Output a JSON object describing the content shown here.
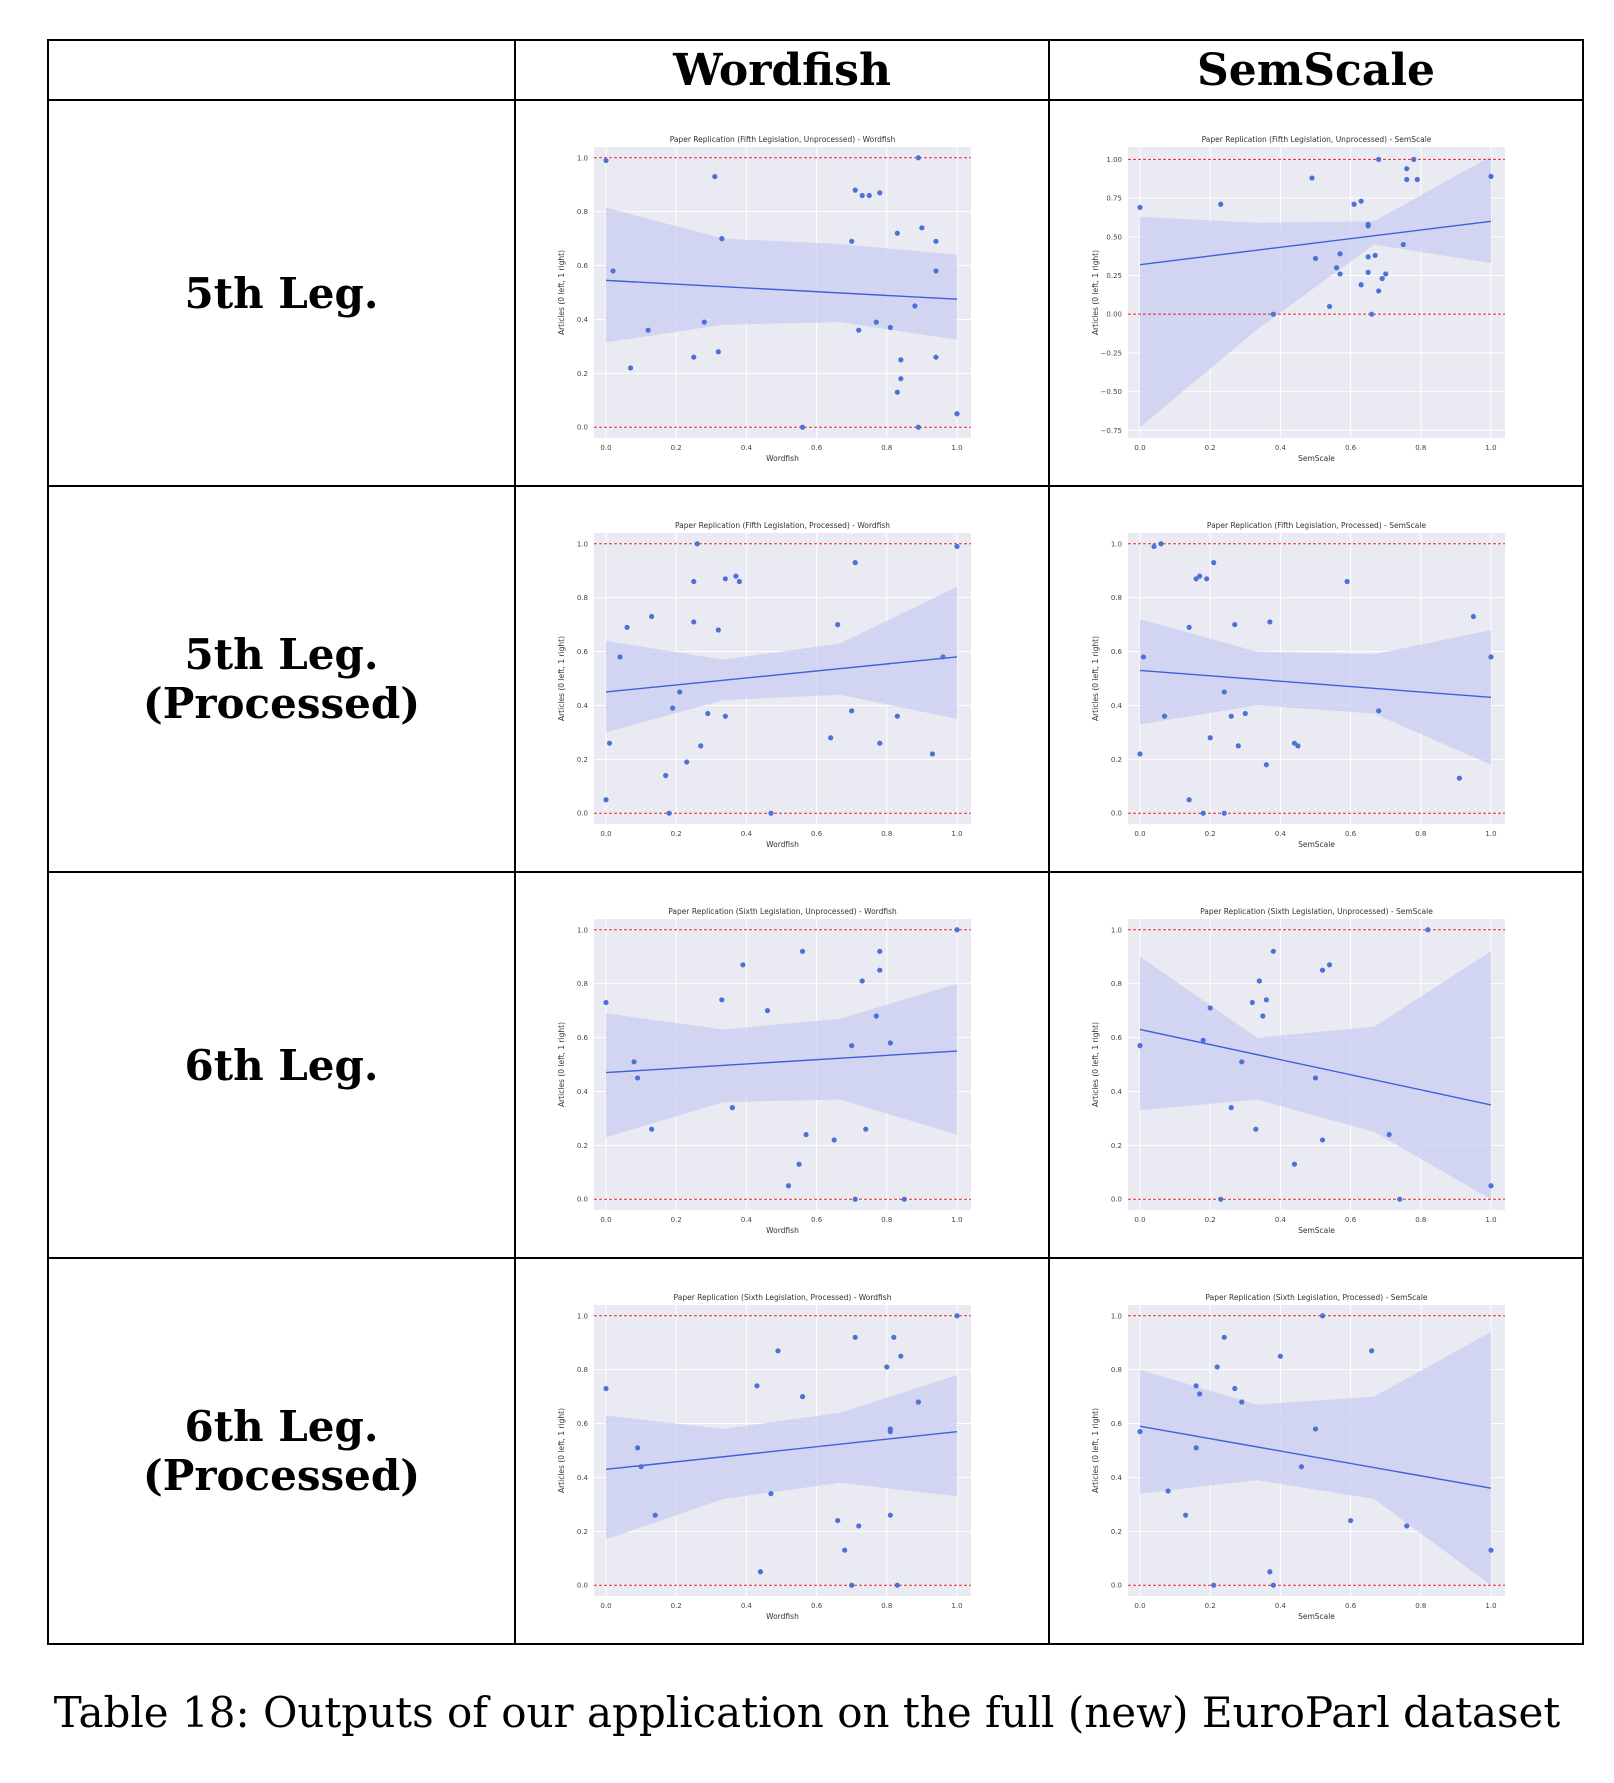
{
  "table": {
    "column_headers": [
      "",
      "Wordfish",
      "SemScale"
    ],
    "row_labels": [
      "5th Leg.",
      "5th Leg. (Processed)",
      "6th Leg.",
      "6th Leg. (Processed)"
    ]
  },
  "caption": "Table 18: Outputs of our application on the full (new) EuroParl dataset",
  "colors": {
    "plot_bg": "#eaeaf2",
    "point": "#4c72d8",
    "band": "#c9cdf0",
    "refline": "#e8202a",
    "fit": "#4060d8"
  },
  "chart_data": [
    {
      "type": "scatter",
      "title": "Paper Replication (Fifth Legislation, Unprocessed) - Wordfish",
      "xlabel": "Wordfish",
      "ylabel": "Articles (0 left, 1 right)",
      "xlim": [
        0,
        1
      ],
      "ylim": [
        -0.04,
        1.04
      ],
      "xticks": [
        "0.0",
        "0.2",
        "0.4",
        "0.6",
        "0.8",
        "1.0"
      ],
      "yticks": [
        "0.0",
        "0.2",
        "0.4",
        "0.6",
        "0.8",
        "1.0"
      ],
      "ytick_values": [
        0,
        0.2,
        0.4,
        0.6,
        0.8,
        1.0
      ],
      "ref_lines": [
        0,
        1
      ],
      "fit": [
        0.545,
        0.475
      ],
      "band_upper": [
        0.815,
        0.7,
        0.68,
        0.64
      ],
      "band_lower": [
        0.315,
        0.38,
        0.39,
        0.325
      ],
      "points": [
        [
          0,
          0.99
        ],
        [
          0.02,
          0.58
        ],
        [
          0.07,
          0.22
        ],
        [
          0.12,
          0.36
        ],
        [
          0.25,
          0.26
        ],
        [
          0.28,
          0.39
        ],
        [
          0.31,
          0.93
        ],
        [
          0.32,
          0.28
        ],
        [
          0.33,
          0.7
        ],
        [
          0.56,
          0.0
        ],
        [
          0.7,
          0.69
        ],
        [
          0.71,
          0.88
        ],
        [
          0.72,
          0.36
        ],
        [
          0.73,
          0.86
        ],
        [
          0.75,
          0.86
        ],
        [
          0.77,
          0.39
        ],
        [
          0.78,
          0.87
        ],
        [
          0.81,
          0.37
        ],
        [
          0.83,
          0.72
        ],
        [
          0.84,
          0.25
        ],
        [
          0.84,
          0.18
        ],
        [
          0.83,
          0.13
        ],
        [
          0.88,
          0.45
        ],
        [
          0.89,
          0.0
        ],
        [
          0.89,
          1.0
        ],
        [
          0.9,
          0.74
        ],
        [
          0.94,
          0.69
        ],
        [
          0.94,
          0.58
        ],
        [
          0.94,
          0.26
        ],
        [
          1.0,
          0.05
        ]
      ]
    },
    {
      "type": "scatter",
      "title": "Paper Replication (Fifth Legislation, Unprocessed) - SemScale",
      "xlabel": "SemScale",
      "ylabel": "Articles (0 left, 1 right)",
      "xlim": [
        0,
        1
      ],
      "ylim": [
        -0.8,
        1.08
      ],
      "xticks": [
        "0.0",
        "0.2",
        "0.4",
        "0.6",
        "0.8",
        "1.0"
      ],
      "yticks": [
        "−0.75",
        "−0.50",
        "−0.25",
        "0.00",
        "0.25",
        "0.50",
        "0.75",
        "1.00"
      ],
      "ytick_values": [
        -0.75,
        -0.5,
        -0.25,
        0,
        0.25,
        0.5,
        0.75,
        1.0
      ],
      "ref_lines": [
        0,
        1
      ],
      "fit": [
        0.32,
        0.6
      ],
      "band_upper": [
        0.63,
        0.59,
        0.6,
        1.02
      ],
      "band_lower": [
        -0.73,
        -0.1,
        0.45,
        0.33
      ],
      "points": [
        [
          0,
          0.69
        ],
        [
          0.23,
          0.71
        ],
        [
          0.38,
          0.0
        ],
        [
          0.49,
          0.88
        ],
        [
          0.5,
          0.36
        ],
        [
          0.54,
          0.05
        ],
        [
          0.56,
          0.3
        ],
        [
          0.57,
          0.26
        ],
        [
          0.57,
          0.39
        ],
        [
          0.61,
          0.71
        ],
        [
          0.63,
          0.19
        ],
        [
          0.63,
          0.73
        ],
        [
          0.65,
          0.57
        ],
        [
          0.65,
          0.58
        ],
        [
          0.65,
          0.37
        ],
        [
          0.65,
          0.27
        ],
        [
          0.66,
          0.0
        ],
        [
          0.67,
          0.38
        ],
        [
          0.68,
          0.15
        ],
        [
          0.68,
          1.0
        ],
        [
          0.69,
          0.23
        ],
        [
          0.7,
          0.26
        ],
        [
          0.75,
          0.45
        ],
        [
          0.76,
          0.94
        ],
        [
          0.76,
          0.87
        ],
        [
          0.78,
          1.0
        ],
        [
          0.79,
          0.87
        ],
        [
          1.0,
          0.89
        ]
      ]
    },
    {
      "type": "scatter",
      "title": "Paper Replication (Fifth Legislation, Processed) - Wordfish",
      "xlabel": "Wordfish",
      "ylabel": "Articles (0 left, 1 right)",
      "xlim": [
        0,
        1
      ],
      "ylim": [
        -0.04,
        1.04
      ],
      "xticks": [
        "0.0",
        "0.2",
        "0.4",
        "0.6",
        "0.8",
        "1.0"
      ],
      "yticks": [
        "0.0",
        "0.2",
        "0.4",
        "0.6",
        "0.8",
        "1.0"
      ],
      "ytick_values": [
        0,
        0.2,
        0.4,
        0.6,
        0.8,
        1.0
      ],
      "ref_lines": [
        0,
        1
      ],
      "fit": [
        0.45,
        0.58
      ],
      "band_upper": [
        0.64,
        0.57,
        0.63,
        0.84
      ],
      "band_lower": [
        0.3,
        0.42,
        0.44,
        0.35
      ],
      "points": [
        [
          0,
          0.05
        ],
        [
          0.01,
          0.26
        ],
        [
          0.04,
          0.58
        ],
        [
          0.06,
          0.69
        ],
        [
          0.13,
          0.73
        ],
        [
          0.17,
          0.14
        ],
        [
          0.18,
          0.0
        ],
        [
          0.19,
          0.39
        ],
        [
          0.21,
          0.45
        ],
        [
          0.23,
          0.19
        ],
        [
          0.25,
          0.71
        ],
        [
          0.25,
          0.86
        ],
        [
          0.26,
          1.0
        ],
        [
          0.27,
          0.25
        ],
        [
          0.29,
          0.37
        ],
        [
          0.32,
          0.68
        ],
        [
          0.34,
          0.36
        ],
        [
          0.34,
          0.87
        ],
        [
          0.37,
          0.88
        ],
        [
          0.38,
          0.86
        ],
        [
          0.47,
          0.0
        ],
        [
          0.64,
          0.28
        ],
        [
          0.66,
          0.7
        ],
        [
          0.7,
          0.38
        ],
        [
          0.71,
          0.93
        ],
        [
          0.78,
          0.26
        ],
        [
          0.83,
          0.36
        ],
        [
          0.93,
          0.22
        ],
        [
          0.96,
          0.58
        ],
        [
          1.0,
          0.99
        ]
      ]
    },
    {
      "type": "scatter",
      "title": "Paper Replication (Fifth Legislation, Processed) - SemScale",
      "xlabel": "SemScale",
      "ylabel": "Articles (0 left, 1 right)",
      "xlim": [
        0,
        1
      ],
      "ylim": [
        -0.04,
        1.04
      ],
      "xticks": [
        "0.0",
        "0.2",
        "0.4",
        "0.6",
        "0.8",
        "1.0"
      ],
      "yticks": [
        "0.0",
        "0.2",
        "0.4",
        "0.6",
        "0.8",
        "1.0"
      ],
      "ytick_values": [
        0,
        0.2,
        0.4,
        0.6,
        0.8,
        1.0
      ],
      "ref_lines": [
        0,
        1
      ],
      "fit": [
        0.53,
        0.43
      ],
      "band_upper": [
        0.72,
        0.6,
        0.59,
        0.68
      ],
      "band_lower": [
        0.33,
        0.4,
        0.37,
        0.18
      ],
      "points": [
        [
          0,
          0.22
        ],
        [
          0.01,
          0.58
        ],
        [
          0.04,
          0.99
        ],
        [
          0.06,
          1.0
        ],
        [
          0.07,
          0.36
        ],
        [
          0.14,
          0.69
        ],
        [
          0.14,
          0.05
        ],
        [
          0.16,
          0.87
        ],
        [
          0.17,
          0.88
        ],
        [
          0.18,
          0.0
        ],
        [
          0.19,
          0.87
        ],
        [
          0.2,
          0.28
        ],
        [
          0.21,
          0.93
        ],
        [
          0.24,
          0.0
        ],
        [
          0.24,
          0.45
        ],
        [
          0.26,
          0.36
        ],
        [
          0.27,
          0.7
        ],
        [
          0.28,
          0.25
        ],
        [
          0.3,
          0.37
        ],
        [
          0.36,
          0.18
        ],
        [
          0.37,
          0.71
        ],
        [
          0.44,
          0.26
        ],
        [
          0.45,
          0.25
        ],
        [
          0.59,
          0.86
        ],
        [
          0.68,
          0.38
        ],
        [
          0.91,
          0.13
        ],
        [
          0.95,
          0.73
        ],
        [
          1.0,
          0.58
        ]
      ]
    },
    {
      "type": "scatter",
      "title": "Paper Replication (Sixth Legislation, Unprocessed) - Wordfish",
      "xlabel": "Wordfish",
      "ylabel": "Articles (0 left, 1 right)",
      "xlim": [
        0,
        1
      ],
      "ylim": [
        -0.04,
        1.04
      ],
      "xticks": [
        "0.0",
        "0.2",
        "0.4",
        "0.6",
        "0.8",
        "1.0"
      ],
      "yticks": [
        "0.0",
        "0.2",
        "0.4",
        "0.6",
        "0.8",
        "1.0"
      ],
      "ytick_values": [
        0,
        0.2,
        0.4,
        0.6,
        0.8,
        1.0
      ],
      "ref_lines": [
        0,
        1
      ],
      "fit": [
        0.47,
        0.55
      ],
      "band_upper": [
        0.69,
        0.63,
        0.67,
        0.8
      ],
      "band_lower": [
        0.23,
        0.36,
        0.37,
        0.24
      ],
      "points": [
        [
          0,
          0.73
        ],
        [
          0.08,
          0.51
        ],
        [
          0.09,
          0.45
        ],
        [
          0.13,
          0.26
        ],
        [
          0.33,
          0.74
        ],
        [
          0.36,
          0.34
        ],
        [
          0.39,
          0.87
        ],
        [
          0.46,
          0.7
        ],
        [
          0.52,
          0.05
        ],
        [
          0.55,
          0.13
        ],
        [
          0.56,
          0.92
        ],
        [
          0.57,
          0.24
        ],
        [
          0.65,
          0.22
        ],
        [
          0.7,
          0.57
        ],
        [
          0.71,
          0.0
        ],
        [
          0.73,
          0.81
        ],
        [
          0.74,
          0.26
        ],
        [
          0.77,
          0.68
        ],
        [
          0.78,
          0.92
        ],
        [
          0.78,
          0.85
        ],
        [
          0.81,
          0.58
        ],
        [
          0.85,
          0.0
        ],
        [
          1.0,
          1.0
        ]
      ]
    },
    {
      "type": "scatter",
      "title": "Paper Replication (Sixth Legislation, Unprocessed) - SemScale",
      "xlabel": "SemScale",
      "ylabel": "Articles (0 left, 1 right)",
      "xlim": [
        0,
        1
      ],
      "ylim": [
        -0.04,
        1.04
      ],
      "xticks": [
        "0.0",
        "0.2",
        "0.4",
        "0.6",
        "0.8",
        "1.0"
      ],
      "yticks": [
        "0.0",
        "0.2",
        "0.4",
        "0.6",
        "0.8",
        "1.0"
      ],
      "ytick_values": [
        0,
        0.2,
        0.4,
        0.6,
        0.8,
        1.0
      ],
      "ref_lines": [
        0,
        1
      ],
      "fit": [
        0.63,
        0.35
      ],
      "band_upper": [
        0.9,
        0.6,
        0.64,
        0.92
      ],
      "band_lower": [
        0.33,
        0.37,
        0.25,
        0.0
      ],
      "points": [
        [
          0,
          0.57
        ],
        [
          0.18,
          0.59
        ],
        [
          0.2,
          0.71
        ],
        [
          0.23,
          0.0
        ],
        [
          0.26,
          0.34
        ],
        [
          0.29,
          0.51
        ],
        [
          0.32,
          0.73
        ],
        [
          0.33,
          0.26
        ],
        [
          0.34,
          0.81
        ],
        [
          0.35,
          0.68
        ],
        [
          0.36,
          0.74
        ],
        [
          0.38,
          0.92
        ],
        [
          0.44,
          0.13
        ],
        [
          0.5,
          0.45
        ],
        [
          0.52,
          0.22
        ],
        [
          0.52,
          0.85
        ],
        [
          0.54,
          0.87
        ],
        [
          0.71,
          0.24
        ],
        [
          0.74,
          0.0
        ],
        [
          0.82,
          1.0
        ],
        [
          1.0,
          0.05
        ]
      ]
    },
    {
      "type": "scatter",
      "title": "Paper Replication (Sixth Legislation, Processed) - Wordfish",
      "xlabel": "Wordfish",
      "ylabel": "Articles (0 left, 1 right)",
      "xlim": [
        0,
        1
      ],
      "ylim": [
        -0.04,
        1.04
      ],
      "xticks": [
        "0.0",
        "0.2",
        "0.4",
        "0.6",
        "0.8",
        "1.0"
      ],
      "yticks": [
        "0.0",
        "0.2",
        "0.4",
        "0.6",
        "0.8",
        "1.0"
      ],
      "ytick_values": [
        0,
        0.2,
        0.4,
        0.6,
        0.8,
        1.0
      ],
      "ref_lines": [
        0,
        1
      ],
      "fit": [
        0.43,
        0.57
      ],
      "band_upper": [
        0.63,
        0.58,
        0.64,
        0.78
      ],
      "band_lower": [
        0.17,
        0.32,
        0.38,
        0.33
      ],
      "points": [
        [
          0,
          0.73
        ],
        [
          0.09,
          0.51
        ],
        [
          0.1,
          0.44
        ],
        [
          0.14,
          0.26
        ],
        [
          0.43,
          0.74
        ],
        [
          0.44,
          0.05
        ],
        [
          0.47,
          0.34
        ],
        [
          0.49,
          0.87
        ],
        [
          0.56,
          0.7
        ],
        [
          0.66,
          0.24
        ],
        [
          0.68,
          0.13
        ],
        [
          0.7,
          0.0
        ],
        [
          0.71,
          0.92
        ],
        [
          0.72,
          0.22
        ],
        [
          0.8,
          0.81
        ],
        [
          0.81,
          0.58
        ],
        [
          0.81,
          0.57
        ],
        [
          0.81,
          0.26
        ],
        [
          0.82,
          0.92
        ],
        [
          0.83,
          0.0
        ],
        [
          0.84,
          0.85
        ],
        [
          0.89,
          0.68
        ],
        [
          1.0,
          1.0
        ]
      ]
    },
    {
      "type": "scatter",
      "title": "Paper Replication (Sixth Legislation, Processed) - SemScale",
      "xlabel": "SemScale",
      "ylabel": "Articles (0 left, 1 right)",
      "xlim": [
        0,
        1
      ],
      "ylim": [
        -0.04,
        1.04
      ],
      "xticks": [
        "0.0",
        "0.2",
        "0.4",
        "0.6",
        "0.8",
        "1.0"
      ],
      "yticks": [
        "0.0",
        "0.2",
        "0.4",
        "0.6",
        "0.8",
        "1.0"
      ],
      "ytick_values": [
        0,
        0.2,
        0.4,
        0.6,
        0.8,
        1.0
      ],
      "ref_lines": [
        0,
        1
      ],
      "fit": [
        0.59,
        0.36
      ],
      "band_upper": [
        0.8,
        0.67,
        0.7,
        0.94
      ],
      "band_lower": [
        0.34,
        0.39,
        0.32,
        0.0
      ],
      "points": [
        [
          0,
          0.57
        ],
        [
          0.08,
          0.35
        ],
        [
          0.13,
          0.26
        ],
        [
          0.16,
          0.51
        ],
        [
          0.16,
          0.74
        ],
        [
          0.17,
          0.71
        ],
        [
          0.21,
          0.0
        ],
        [
          0.22,
          0.81
        ],
        [
          0.24,
          0.92
        ],
        [
          0.27,
          0.73
        ],
        [
          0.29,
          0.68
        ],
        [
          0.37,
          0.05
        ],
        [
          0.38,
          0.0
        ],
        [
          0.4,
          0.85
        ],
        [
          0.46,
          0.44
        ],
        [
          0.5,
          0.58
        ],
        [
          0.52,
          1.0
        ],
        [
          0.6,
          0.24
        ],
        [
          0.66,
          0.87
        ],
        [
          0.76,
          0.22
        ],
        [
          1.0,
          0.13
        ]
      ]
    }
  ]
}
